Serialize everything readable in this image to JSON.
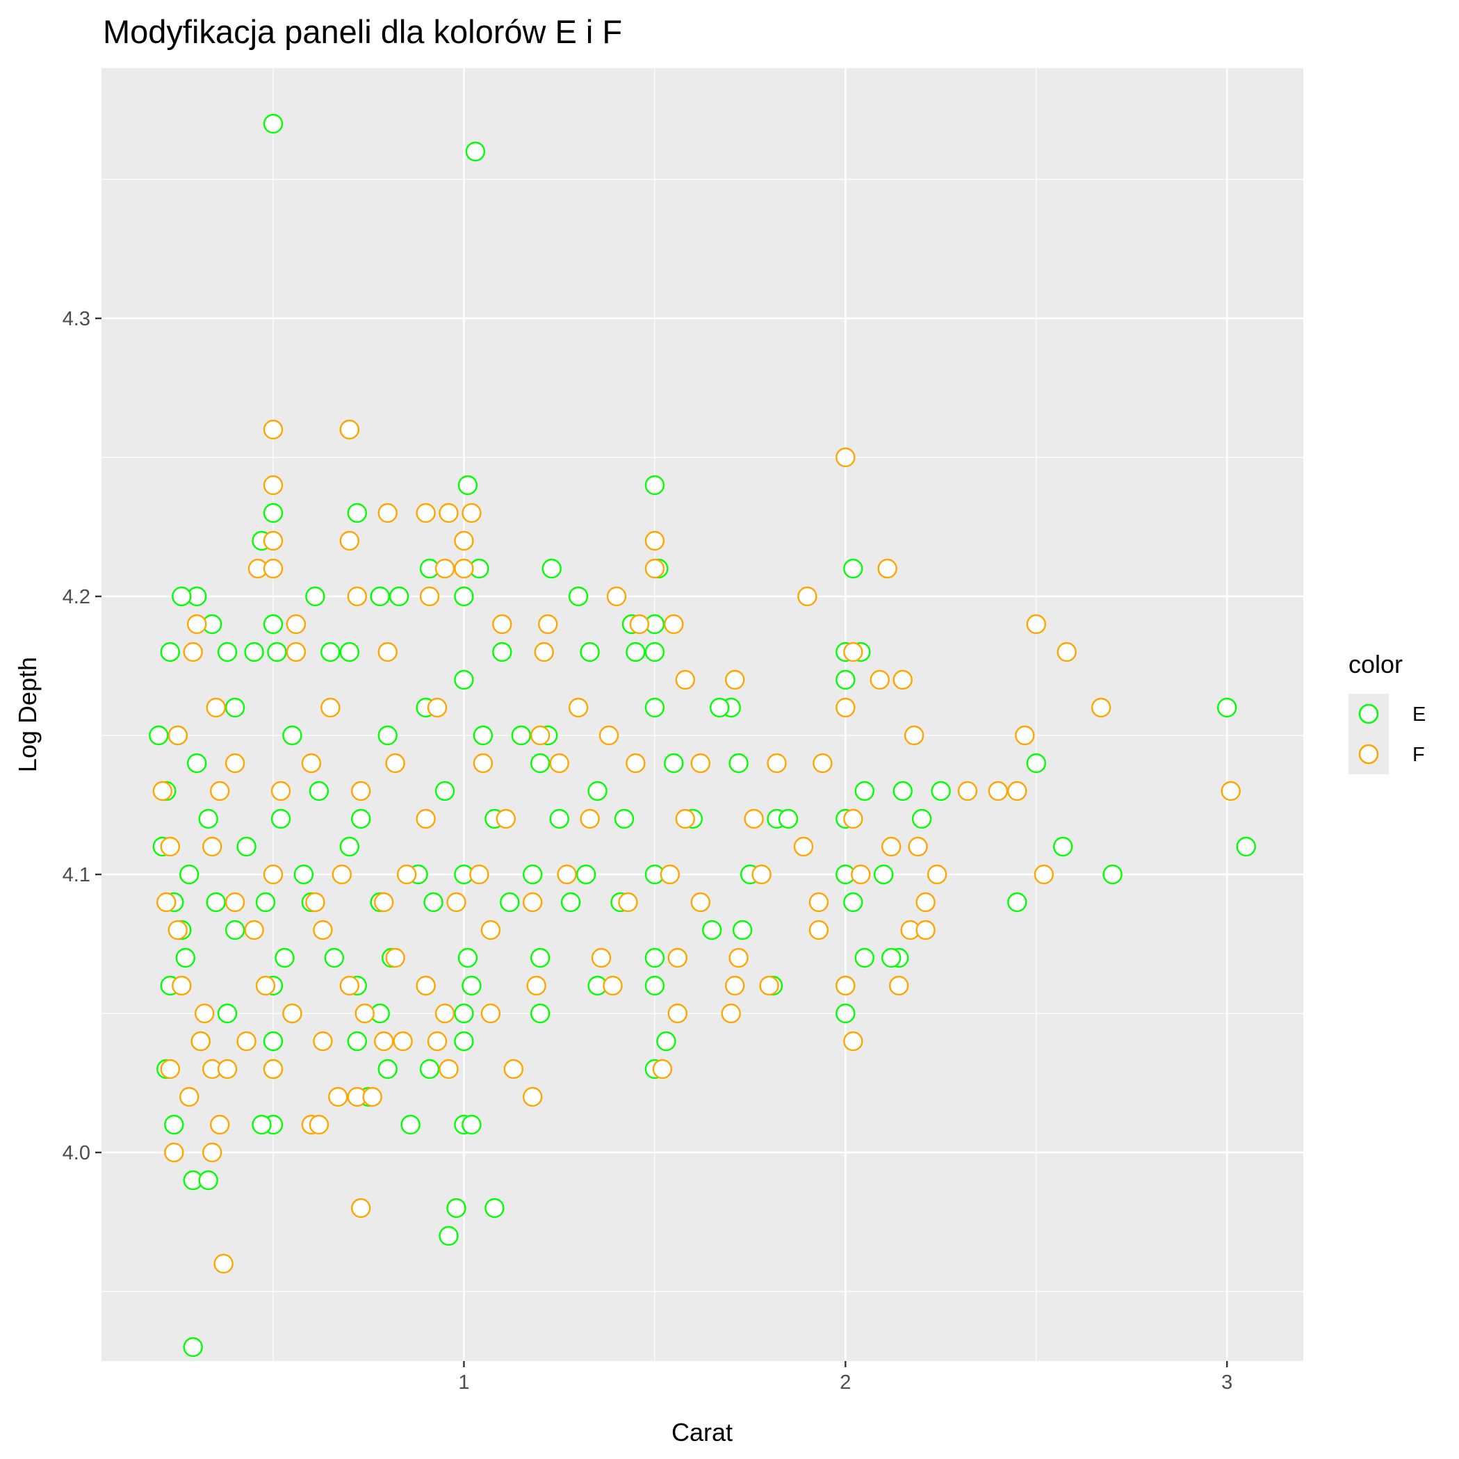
{
  "chart_data": {
    "type": "scatter",
    "title": "Modyfikacja paneli dla kolorów E i F",
    "xlabel": "Carat",
    "ylabel": "Log Depth",
    "xlim": [
      0.05,
      3.2
    ],
    "ylim": [
      3.925,
      4.39
    ],
    "x_ticks": [
      1,
      2,
      3
    ],
    "x_tick_labels": [
      "1",
      "2",
      "3"
    ],
    "y_ticks": [
      4.0,
      4.1,
      4.2,
      4.3
    ],
    "y_tick_labels": [
      "4.0",
      "4.1",
      "4.2",
      "4.3"
    ],
    "grid": true,
    "legend": {
      "title": "color",
      "position": "right"
    },
    "series": [
      {
        "name": "E",
        "color": "#00ff00",
        "points": [
          [
            0.5,
            4.37
          ],
          [
            1.03,
            4.36
          ],
          [
            1.01,
            4.24
          ],
          [
            1.5,
            4.24
          ],
          [
            0.5,
            4.23
          ],
          [
            0.7,
            4.26
          ],
          [
            0.72,
            4.23
          ],
          [
            0.47,
            4.22
          ],
          [
            0.91,
            4.21
          ],
          [
            1.04,
            4.21
          ],
          [
            1.23,
            4.21
          ],
          [
            2.02,
            4.21
          ],
          [
            1.51,
            4.21
          ],
          [
            0.3,
            4.2
          ],
          [
            0.78,
            4.2
          ],
          [
            0.83,
            4.2
          ],
          [
            0.26,
            4.2
          ],
          [
            0.5,
            4.19
          ],
          [
            0.61,
            4.2
          ],
          [
            1.3,
            4.2
          ],
          [
            1.5,
            4.19
          ],
          [
            0.34,
            4.19
          ],
          [
            1.0,
            4.2
          ],
          [
            2.0,
            4.18
          ],
          [
            0.45,
            4.18
          ],
          [
            0.51,
            4.18
          ],
          [
            0.65,
            4.18
          ],
          [
            1.1,
            4.18
          ],
          [
            1.33,
            4.18
          ],
          [
            1.44,
            4.19
          ],
          [
            1.45,
            4.18
          ],
          [
            1.5,
            4.18
          ],
          [
            2.04,
            4.18
          ],
          [
            0.23,
            4.18
          ],
          [
            0.38,
            4.18
          ],
          [
            0.7,
            4.18
          ],
          [
            0.9,
            4.16
          ],
          [
            1.0,
            4.17
          ],
          [
            1.5,
            4.16
          ],
          [
            2.0,
            4.17
          ],
          [
            1.7,
            4.16
          ],
          [
            1.67,
            4.16
          ],
          [
            1.22,
            4.15
          ],
          [
            1.15,
            4.15
          ],
          [
            3.0,
            4.16
          ],
          [
            2.5,
            4.14
          ],
          [
            0.2,
            4.15
          ],
          [
            0.25,
            4.15
          ],
          [
            0.3,
            4.14
          ],
          [
            0.4,
            4.16
          ],
          [
            0.55,
            4.15
          ],
          [
            0.8,
            4.15
          ],
          [
            1.05,
            4.15
          ],
          [
            1.2,
            4.14
          ],
          [
            1.35,
            4.13
          ],
          [
            1.55,
            4.14
          ],
          [
            1.72,
            4.14
          ],
          [
            2.05,
            4.13
          ],
          [
            2.15,
            4.13
          ],
          [
            0.22,
            4.13
          ],
          [
            0.33,
            4.12
          ],
          [
            0.52,
            4.12
          ],
          [
            0.62,
            4.13
          ],
          [
            0.73,
            4.12
          ],
          [
            0.95,
            4.13
          ],
          [
            1.08,
            4.12
          ],
          [
            1.25,
            4.12
          ],
          [
            1.42,
            4.12
          ],
          [
            1.6,
            4.12
          ],
          [
            1.82,
            4.12
          ],
          [
            2.0,
            4.12
          ],
          [
            2.25,
            4.13
          ],
          [
            2.2,
            4.12
          ],
          [
            1.85,
            4.12
          ],
          [
            2.57,
            4.11
          ],
          [
            3.05,
            4.11
          ],
          [
            2.7,
            4.1
          ],
          [
            0.21,
            4.11
          ],
          [
            0.28,
            4.1
          ],
          [
            0.43,
            4.11
          ],
          [
            0.58,
            4.1
          ],
          [
            0.7,
            4.11
          ],
          [
            0.88,
            4.1
          ],
          [
            1.0,
            4.1
          ],
          [
            1.18,
            4.1
          ],
          [
            1.32,
            4.1
          ],
          [
            1.5,
            4.1
          ],
          [
            1.75,
            4.1
          ],
          [
            2.0,
            4.1
          ],
          [
            2.1,
            4.1
          ],
          [
            0.24,
            4.09
          ],
          [
            0.35,
            4.09
          ],
          [
            0.48,
            4.09
          ],
          [
            0.6,
            4.09
          ],
          [
            0.78,
            4.09
          ],
          [
            0.92,
            4.09
          ],
          [
            1.12,
            4.09
          ],
          [
            1.28,
            4.09
          ],
          [
            1.41,
            4.09
          ],
          [
            1.65,
            4.08
          ],
          [
            2.02,
            4.09
          ],
          [
            2.45,
            4.09
          ],
          [
            0.26,
            4.08
          ],
          [
            0.4,
            4.08
          ],
          [
            0.53,
            4.07
          ],
          [
            0.66,
            4.07
          ],
          [
            0.81,
            4.07
          ],
          [
            1.01,
            4.07
          ],
          [
            1.2,
            4.07
          ],
          [
            1.5,
            4.07
          ],
          [
            1.73,
            4.08
          ],
          [
            2.05,
            4.07
          ],
          [
            2.14,
            4.07
          ],
          [
            0.27,
            4.07
          ],
          [
            0.5,
            4.06
          ],
          [
            0.72,
            4.06
          ],
          [
            0.9,
            4.06
          ],
          [
            1.02,
            4.06
          ],
          [
            1.35,
            4.06
          ],
          [
            1.5,
            4.06
          ],
          [
            1.81,
            4.06
          ],
          [
            2.0,
            4.06
          ],
          [
            2.12,
            4.07
          ],
          [
            0.23,
            4.06
          ],
          [
            0.38,
            4.05
          ],
          [
            0.55,
            4.05
          ],
          [
            0.78,
            4.05
          ],
          [
            1.0,
            4.05
          ],
          [
            1.2,
            4.05
          ],
          [
            1.53,
            4.04
          ],
          [
            2.0,
            4.05
          ],
          [
            0.31,
            4.04
          ],
          [
            0.5,
            4.04
          ],
          [
            0.72,
            4.04
          ],
          [
            0.91,
            4.03
          ],
          [
            1.0,
            4.04
          ],
          [
            1.5,
            4.03
          ],
          [
            0.22,
            4.03
          ],
          [
            0.5,
            4.03
          ],
          [
            0.8,
            4.03
          ],
          [
            0.75,
            4.02
          ],
          [
            0.5,
            4.01
          ],
          [
            0.47,
            4.01
          ],
          [
            0.24,
            4.01
          ],
          [
            0.86,
            4.01
          ],
          [
            1.0,
            4.01
          ],
          [
            1.02,
            4.01
          ],
          [
            0.29,
            3.99
          ],
          [
            0.33,
            3.99
          ],
          [
            1.08,
            3.98
          ],
          [
            0.98,
            3.98
          ],
          [
            0.96,
            3.97
          ],
          [
            0.29,
            3.93
          ]
        ]
      },
      {
        "name": "F",
        "color": "#ffa500",
        "points": [
          [
            0.5,
            4.26
          ],
          [
            0.7,
            4.26
          ],
          [
            2.0,
            4.25
          ],
          [
            0.5,
            4.24
          ],
          [
            1.02,
            4.23
          ],
          [
            0.9,
            4.23
          ],
          [
            0.8,
            4.23
          ],
          [
            0.96,
            4.23
          ],
          [
            1.0,
            4.22
          ],
          [
            0.5,
            4.22
          ],
          [
            1.5,
            4.22
          ],
          [
            1.5,
            4.21
          ],
          [
            2.11,
            4.21
          ],
          [
            0.7,
            4.22
          ],
          [
            0.46,
            4.21
          ],
          [
            0.5,
            4.21
          ],
          [
            1.0,
            4.21
          ],
          [
            0.95,
            4.21
          ],
          [
            0.91,
            4.2
          ],
          [
            0.72,
            4.2
          ],
          [
            1.4,
            4.2
          ],
          [
            1.9,
            4.2
          ],
          [
            1.1,
            4.19
          ],
          [
            0.56,
            4.19
          ],
          [
            0.3,
            4.19
          ],
          [
            2.5,
            4.19
          ],
          [
            1.55,
            4.19
          ],
          [
            1.22,
            4.19
          ],
          [
            1.46,
            4.19
          ],
          [
            2.58,
            4.18
          ],
          [
            1.58,
            4.17
          ],
          [
            2.02,
            4.18
          ],
          [
            0.8,
            4.18
          ],
          [
            0.56,
            4.18
          ],
          [
            0.29,
            4.18
          ],
          [
            1.21,
            4.18
          ],
          [
            1.71,
            4.17
          ],
          [
            2.15,
            4.17
          ],
          [
            2.09,
            4.17
          ],
          [
            2.67,
            4.16
          ],
          [
            1.3,
            4.16
          ],
          [
            0.93,
            4.16
          ],
          [
            0.65,
            4.16
          ],
          [
            0.35,
            4.16
          ],
          [
            2.0,
            4.16
          ],
          [
            1.38,
            4.15
          ],
          [
            1.2,
            4.15
          ],
          [
            2.18,
            4.15
          ],
          [
            2.47,
            4.15
          ],
          [
            0.25,
            4.15
          ],
          [
            0.4,
            4.14
          ],
          [
            0.6,
            4.14
          ],
          [
            0.82,
            4.14
          ],
          [
            1.05,
            4.14
          ],
          [
            1.25,
            4.14
          ],
          [
            1.45,
            4.14
          ],
          [
            1.62,
            4.14
          ],
          [
            1.82,
            4.14
          ],
          [
            1.94,
            4.14
          ],
          [
            2.32,
            4.13
          ],
          [
            2.4,
            4.13
          ],
          [
            2.45,
            4.13
          ],
          [
            3.01,
            4.13
          ],
          [
            0.21,
            4.13
          ],
          [
            0.36,
            4.13
          ],
          [
            0.52,
            4.13
          ],
          [
            0.73,
            4.13
          ],
          [
            0.9,
            4.12
          ],
          [
            1.11,
            4.12
          ],
          [
            1.33,
            4.12
          ],
          [
            1.58,
            4.12
          ],
          [
            1.76,
            4.12
          ],
          [
            2.02,
            4.12
          ],
          [
            2.19,
            4.11
          ],
          [
            2.12,
            4.11
          ],
          [
            1.89,
            4.11
          ],
          [
            0.23,
            4.11
          ],
          [
            0.34,
            4.11
          ],
          [
            0.5,
            4.1
          ],
          [
            0.68,
            4.1
          ],
          [
            0.85,
            4.1
          ],
          [
            1.04,
            4.1
          ],
          [
            1.27,
            4.1
          ],
          [
            1.54,
            4.1
          ],
          [
            1.78,
            4.1
          ],
          [
            2.04,
            4.1
          ],
          [
            2.24,
            4.1
          ],
          [
            2.52,
            4.1
          ],
          [
            0.22,
            4.09
          ],
          [
            0.4,
            4.09
          ],
          [
            0.61,
            4.09
          ],
          [
            0.79,
            4.09
          ],
          [
            0.98,
            4.09
          ],
          [
            1.18,
            4.09
          ],
          [
            1.43,
            4.09
          ],
          [
            1.62,
            4.09
          ],
          [
            2.21,
            4.09
          ],
          [
            1.93,
            4.09
          ],
          [
            2.17,
            4.08
          ],
          [
            0.25,
            4.08
          ],
          [
            0.45,
            4.08
          ],
          [
            0.63,
            4.08
          ],
          [
            0.82,
            4.07
          ],
          [
            1.07,
            4.08
          ],
          [
            1.36,
            4.07
          ],
          [
            1.56,
            4.07
          ],
          [
            1.72,
            4.07
          ],
          [
            1.93,
            4.08
          ],
          [
            2.21,
            4.08
          ],
          [
            0.26,
            4.06
          ],
          [
            0.48,
            4.06
          ],
          [
            0.7,
            4.06
          ],
          [
            0.9,
            4.06
          ],
          [
            1.19,
            4.06
          ],
          [
            1.39,
            4.06
          ],
          [
            1.71,
            4.06
          ],
          [
            1.8,
            4.06
          ],
          [
            2.14,
            4.06
          ],
          [
            2.0,
            4.06
          ],
          [
            0.32,
            4.05
          ],
          [
            0.55,
            4.05
          ],
          [
            0.74,
            4.05
          ],
          [
            0.95,
            4.05
          ],
          [
            1.07,
            4.05
          ],
          [
            1.56,
            4.05
          ],
          [
            1.7,
            4.05
          ],
          [
            2.02,
            4.04
          ],
          [
            0.31,
            4.04
          ],
          [
            0.43,
            4.04
          ],
          [
            0.63,
            4.04
          ],
          [
            0.93,
            4.04
          ],
          [
            1.13,
            4.03
          ],
          [
            0.5,
            4.03
          ],
          [
            0.84,
            4.04
          ],
          [
            0.79,
            4.04
          ],
          [
            1.52,
            4.03
          ],
          [
            0.23,
            4.03
          ],
          [
            0.34,
            4.03
          ],
          [
            0.38,
            4.03
          ],
          [
            0.96,
            4.03
          ],
          [
            1.18,
            4.02
          ],
          [
            0.72,
            4.02
          ],
          [
            0.67,
            4.02
          ],
          [
            0.76,
            4.02
          ],
          [
            0.28,
            4.02
          ],
          [
            0.6,
            4.01
          ],
          [
            0.36,
            4.01
          ],
          [
            0.62,
            4.01
          ],
          [
            0.34,
            4.0
          ],
          [
            0.24,
            4.0
          ],
          [
            0.73,
            3.98
          ],
          [
            0.37,
            3.96
          ]
        ]
      }
    ]
  }
}
